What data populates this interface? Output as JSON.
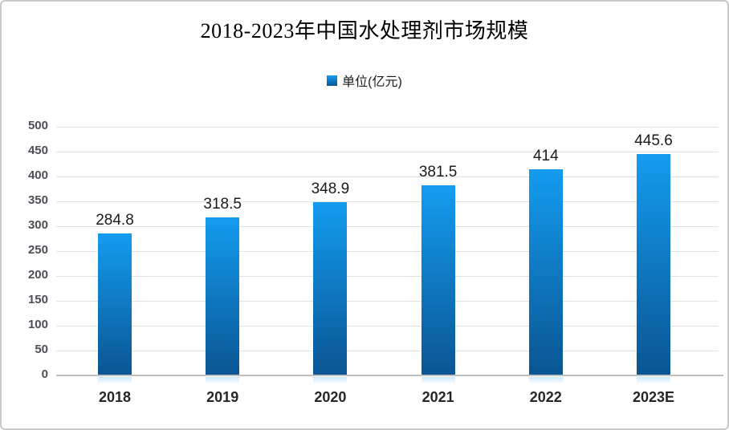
{
  "chart_data": {
    "type": "bar",
    "title": "2018-2023年中国水处理剂市场规模",
    "legend_label": "单位(亿元)",
    "legend_position": "top-center",
    "categories": [
      "2018",
      "2019",
      "2020",
      "2021",
      "2022",
      "2023E"
    ],
    "values": [
      284.8,
      318.5,
      348.9,
      381.5,
      414,
      445.6
    ],
    "value_labels": [
      "284.8",
      "318.5",
      "348.9",
      "381.5",
      "414",
      "445.6"
    ],
    "xlabel": "",
    "ylabel": "",
    "ylim": [
      0,
      500
    ],
    "ytick_step": 50,
    "grid": "horizontal",
    "colors": {
      "bar_gradient_top": "#149CF0",
      "bar_gradient_bottom": "#0A5592",
      "gridline": "#e2e2e2",
      "axis_line": "#c0c0c0",
      "ytick_label": "#4d4d55",
      "xtick_label": "#262626",
      "value_label": "#1a1a1a",
      "frame_border": "#c9c9c9",
      "background": "#ffffff"
    }
  }
}
